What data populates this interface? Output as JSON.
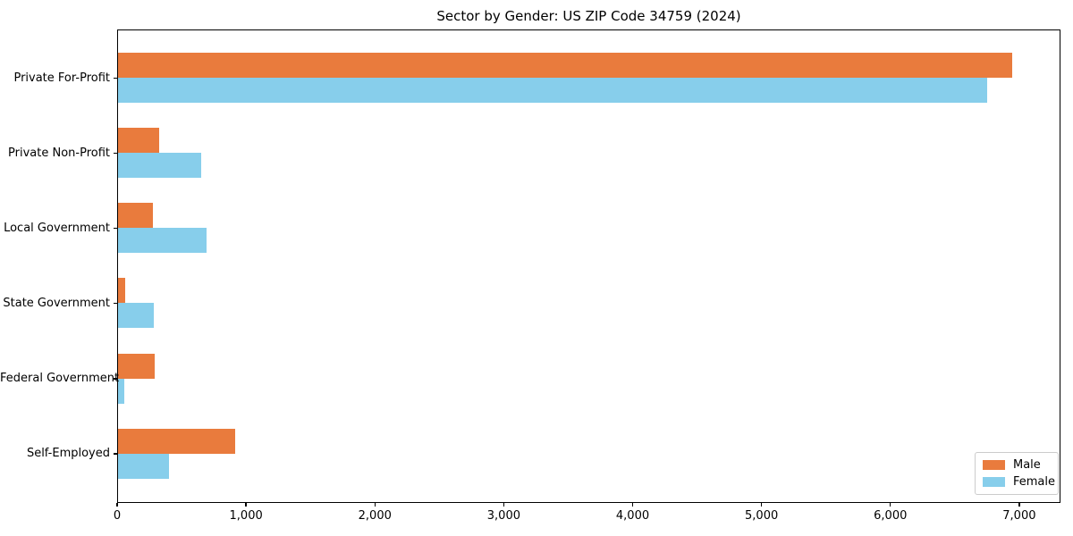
{
  "chart_data": {
    "type": "bar",
    "orientation": "horizontal",
    "title": "Sector by Gender: US ZIP Code 34759 (2024)",
    "categories": [
      "Private For-Profit",
      "Private Non-Profit",
      "Local Government",
      "State Government",
      "Federal Government",
      "Self-Employed"
    ],
    "series": [
      {
        "name": "Male",
        "color": "#e97b3d",
        "values": [
          6960,
          320,
          270,
          55,
          285,
          910
        ]
      },
      {
        "name": "Female",
        "color": "#87ceeb",
        "values": [
          6760,
          650,
          690,
          275,
          50,
          395
        ]
      }
    ],
    "xlabel": "",
    "ylabel": "",
    "xlim": [
      0,
      7320
    ],
    "xticks": [
      0,
      1000,
      2000,
      3000,
      4000,
      5000,
      6000,
      7000
    ],
    "xtick_labels": [
      "0",
      "1,000",
      "2,000",
      "3,000",
      "4,000",
      "5,000",
      "6,000",
      "7,000"
    ],
    "grid": false,
    "legend": {
      "position": "lower right",
      "entries": [
        "Male",
        "Female"
      ]
    }
  }
}
